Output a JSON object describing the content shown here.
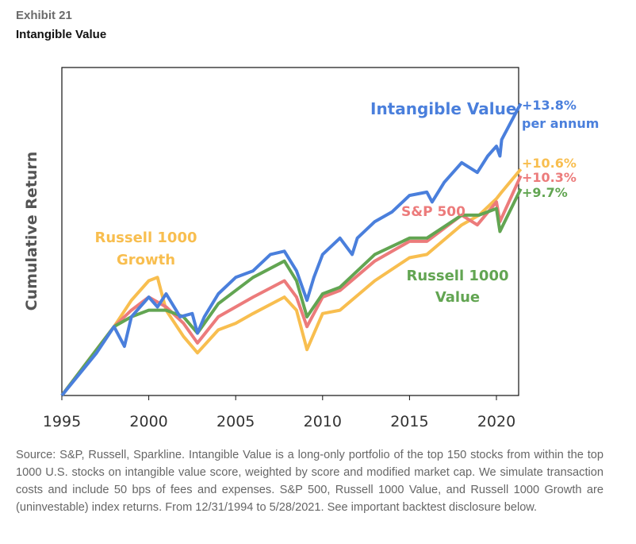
{
  "header": {
    "exhibit": "Exhibit 21",
    "title": "Intangible Value"
  },
  "chart_data": {
    "type": "line",
    "title": "Intangible Value",
    "xlabel": "",
    "ylabel": "Cumulative Return",
    "xlim": [
      1995,
      2021.4
    ],
    "ylim": [
      0,
      100
    ],
    "y_units": "relative cumulative return level (unlabeled axis, 0=start)",
    "xticks": [
      "1995",
      "2000",
      "2005",
      "2010",
      "2015",
      "2020"
    ],
    "grid": false,
    "series": [
      {
        "name": "Intangible Value",
        "color": "#4a7fdc",
        "annotation": "+13.8%",
        "annotation2": "per annum",
        "x": [
          1995,
          1996,
          1997,
          1998,
          1998.6,
          1999,
          2000,
          2000.5,
          2001,
          2001.8,
          2002.5,
          2002.8,
          2003.2,
          2004,
          2005,
          2006,
          2007,
          2007.8,
          2008.5,
          2009.1,
          2009.5,
          2010,
          2011,
          2011.7,
          2012,
          2013,
          2014,
          2015,
          2016,
          2016.3,
          2017,
          2018,
          2018.9,
          2019.5,
          2020,
          2020.2,
          2020.3,
          2021,
          2021.4
        ],
        "y": [
          0,
          6.5,
          13,
          21,
          15,
          24,
          30,
          27,
          31,
          24,
          25,
          19,
          24,
          31,
          36,
          38,
          43,
          44,
          38,
          29,
          36,
          43,
          48,
          43,
          48,
          53,
          56,
          61,
          62,
          59,
          65,
          71,
          68,
          73,
          76,
          73,
          78,
          85,
          89
        ]
      },
      {
        "name": "S&P 500",
        "color": "#ec7b7b",
        "annotation": "+10.3%",
        "x": [
          1995,
          1996,
          1997,
          1998,
          1999,
          2000,
          2001,
          2002,
          2002.8,
          2004,
          2005,
          2006,
          2007.8,
          2008.5,
          2009.1,
          2010,
          2011,
          2013,
          2015,
          2016,
          2018,
          2018.9,
          2020,
          2020.2,
          2021.4
        ],
        "y": [
          0,
          7,
          14,
          21,
          26,
          30,
          27,
          22,
          16,
          24,
          27,
          30,
          35,
          30,
          21,
          30,
          32,
          41,
          47,
          47,
          55,
          52,
          59,
          53,
          67
        ]
      },
      {
        "name": "Russell 1000 Value",
        "color": "#62a552",
        "annotation": "+9.7%",
        "label": [
          "Russell 1000",
          "Value"
        ],
        "x": [
          1995,
          1996,
          1997,
          1998,
          1999,
          2000,
          2001,
          2002,
          2002.8,
          2004,
          2005,
          2006,
          2007.8,
          2008.5,
          2009.1,
          2010,
          2011,
          2013,
          2015,
          2016,
          2018,
          2019,
          2020,
          2020.2,
          2021.4
        ],
        "y": [
          0,
          7,
          14,
          21,
          24,
          26,
          26,
          24,
          19,
          28,
          32,
          36,
          41,
          35,
          24,
          31,
          33,
          43,
          48,
          48,
          55,
          55,
          57,
          50,
          63
        ]
      },
      {
        "name": "Russell 1000 Growth",
        "color": "#f8be4f",
        "annotation": "+10.6%",
        "label": [
          "Russell 1000",
          "Growth"
        ],
        "x": [
          1995,
          1996,
          1997,
          1998,
          1999,
          2000,
          2000.5,
          2001,
          2002,
          2002.8,
          2004,
          2005,
          2006,
          2007.8,
          2008.5,
          2009.1,
          2010,
          2011,
          2013,
          2015,
          2016,
          2018,
          2019,
          2020,
          2020.3,
          2021.4
        ],
        "y": [
          0,
          7,
          14,
          21,
          29,
          35,
          36,
          26,
          18,
          13,
          20,
          22,
          25,
          30,
          26,
          14,
          25,
          26,
          35,
          42,
          43,
          52,
          55,
          60,
          62,
          69
        ]
      }
    ]
  },
  "source": "Source: S&P, Russell, Sparkline. Intangible Value is a long-only portfolio of the top 150 stocks from within the top 1000 U.S. stocks on intangible value score, weighted by score and modified market cap. We simulate transaction costs and include 50 bps of fees and expenses. S&P 500, Russell 1000 Value, and Russell 1000 Growth are (uninvestable) index returns. From 12/31/1994 to 5/28/2021. See important backtest disclosure below."
}
